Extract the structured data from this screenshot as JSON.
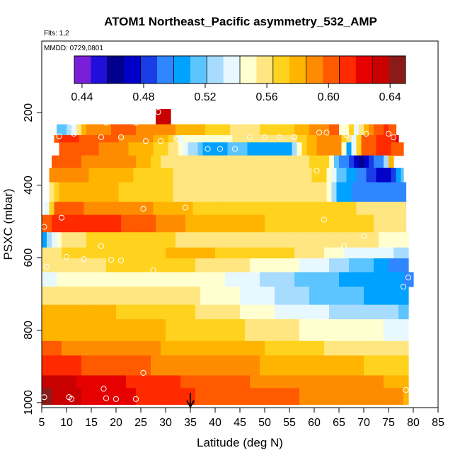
{
  "chart_data": {
    "type": "heatmap",
    "title": "ATOM1 Northeast_Pacific asymmetry_532_AMP",
    "flights_note": "Flts: 1,2",
    "dates_note": "MMDD: 0729,0801",
    "xlabel": "Latitude (deg N)",
    "ylabel": "PSXC (mbar)",
    "xlim": [
      5,
      85
    ],
    "ylim": [
      1000,
      0
    ],
    "x_ticks": [
      "5",
      "10",
      "15",
      "20",
      "25",
      "30",
      "35",
      "40",
      "45",
      "50",
      "55",
      "60",
      "65",
      "70",
      "75",
      "80",
      "85"
    ],
    "y_ticks": [
      "200",
      "400",
      "600",
      "800",
      "1000"
    ],
    "colorbar": {
      "range": [
        0.435,
        0.65
      ],
      "tick_labels": [
        "0.44",
        "0.48",
        "0.52",
        "0.56",
        "0.60",
        "0.64"
      ],
      "colors": [
        "#7a1fd8",
        "#1f0fd8",
        "#00008c",
        "#0000c8",
        "#1a3ce6",
        "#2f86ff",
        "#00a2ff",
        "#5cc4ff",
        "#a8dcff",
        "#e8f8ff",
        "#ffffd0",
        "#ffe680",
        "#ffd21e",
        "#ffb400",
        "#ff8c00",
        "#ff5a00",
        "#ff2a00",
        "#e60000",
        "#c80000",
        "#8b1a1a"
      ]
    },
    "marker_latitude": 35,
    "bands": [
      {
        "p_top": 190,
        "p_bot": 232,
        "x0": 28,
        "x1": 31,
        "v0": 0.63,
        "v1": 0.63
      },
      {
        "p_top": 232,
        "p_bot": 262,
        "x0": 8,
        "x1": 76.5,
        "kx": [
          8,
          11,
          14,
          20,
          30,
          45,
          55,
          60,
          65,
          66,
          67,
          68,
          70,
          72,
          75,
          76.5
        ],
        "kv": [
          0.51,
          0.53,
          0.585,
          0.6,
          0.59,
          0.56,
          0.57,
          0.59,
          0.6,
          0.5,
          0.6,
          0.53,
          0.57,
          0.6,
          0.61,
          0.6
        ]
      },
      {
        "p_top": 262,
        "p_bot": 282,
        "x0": 7.5,
        "x1": 77,
        "kx": [
          7.5,
          9,
          15,
          25,
          30,
          33,
          36,
          40,
          45,
          50,
          55,
          58,
          60,
          65,
          68,
          70,
          74,
          77
        ],
        "kv": [
          0.6,
          0.61,
          0.605,
          0.59,
          0.58,
          0.54,
          0.55,
          0.55,
          0.555,
          0.56,
          0.56,
          0.57,
          0.585,
          0.59,
          0.54,
          0.6,
          0.61,
          0.62
        ]
      },
      {
        "p_top": 282,
        "p_bot": 318,
        "x0": 8.5,
        "x1": 78,
        "kx": [
          8.5,
          15,
          25,
          30,
          33,
          35,
          38,
          41,
          44,
          47,
          50,
          55,
          58,
          60,
          65,
          67,
          70,
          74,
          78
        ],
        "kv": [
          0.6,
          0.6,
          0.58,
          0.57,
          0.55,
          0.53,
          0.51,
          0.5,
          0.52,
          0.51,
          0.5,
          0.51,
          0.57,
          0.585,
          0.59,
          0.5,
          0.6,
          0.61,
          0.6
        ]
      },
      {
        "p_top": 318,
        "p_bot": 352,
        "x0": 7,
        "x1": 76,
        "kx": [
          7,
          15,
          25,
          30,
          40,
          50,
          60,
          63,
          65,
          68,
          69,
          71,
          74,
          76
        ],
        "kv": [
          0.6,
          0.595,
          0.585,
          0.56,
          0.555,
          0.555,
          0.565,
          0.57,
          0.5,
          0.48,
          0.455,
          0.48,
          0.5,
          0.6
        ]
      },
      {
        "p_top": 352,
        "p_bot": 392,
        "x0": 6.5,
        "x1": 78,
        "kx": [
          6.5,
          10,
          20,
          30,
          40,
          50,
          62,
          65,
          70,
          75,
          78
        ],
        "kv": [
          0.59,
          0.59,
          0.58,
          0.565,
          0.56,
          0.56,
          0.565,
          0.52,
          0.49,
          0.47,
          0.52
        ]
      },
      {
        "p_top": 392,
        "p_bot": 446,
        "x0": 6.5,
        "x1": 78.5,
        "kx": [
          6.5,
          10,
          20,
          30,
          40,
          50,
          60,
          63,
          65,
          70,
          75,
          78.5
        ],
        "kv": [
          0.55,
          0.585,
          0.575,
          0.565,
          0.56,
          0.56,
          0.56,
          0.55,
          0.51,
          0.49,
          0.49,
          0.5
        ]
      },
      {
        "p_top": 446,
        "p_bot": 482,
        "x0": 5.5,
        "x1": 78.5,
        "kx": [
          5.5,
          8,
          15,
          25,
          30,
          40,
          50,
          60,
          68,
          72,
          78.5
        ],
        "kv": [
          0.52,
          0.6,
          0.595,
          0.59,
          0.58,
          0.57,
          0.57,
          0.565,
          0.565,
          0.56,
          0.56
        ]
      },
      {
        "p_top": 482,
        "p_bot": 530,
        "x0": 5,
        "x1": 78.5,
        "kx": [
          5,
          8,
          15,
          25,
          30,
          40,
          50,
          60,
          70,
          78.5
        ],
        "kv": [
          0.6,
          0.61,
          0.61,
          0.605,
          0.59,
          0.58,
          0.575,
          0.57,
          0.565,
          0.56
        ]
      },
      {
        "p_top": 530,
        "p_bot": 572,
        "x0": 5,
        "x1": 79,
        "kx": [
          5,
          7,
          10,
          15,
          20,
          25,
          30,
          40,
          50,
          60,
          70,
          79
        ],
        "kv": [
          0.495,
          0.535,
          0.56,
          0.565,
          0.565,
          0.565,
          0.565,
          0.56,
          0.56,
          0.56,
          0.555,
          0.55
        ]
      },
      {
        "p_top": 572,
        "p_bot": 602,
        "x0": 5,
        "x1": 79,
        "kx": [
          5,
          10,
          20,
          30,
          40,
          50,
          60,
          65,
          70,
          79
        ],
        "kv": [
          0.56,
          0.565,
          0.57,
          0.575,
          0.575,
          0.57,
          0.56,
          0.545,
          0.535,
          0.53
        ]
      },
      {
        "p_top": 602,
        "p_bot": 640,
        "x0": 5,
        "x1": 79,
        "kx": [
          5,
          10,
          20,
          30,
          40,
          50,
          60,
          65,
          70,
          75,
          79
        ],
        "kv": [
          0.56,
          0.56,
          0.565,
          0.57,
          0.56,
          0.55,
          0.54,
          0.525,
          0.515,
          0.5,
          0.49
        ]
      },
      {
        "p_top": 640,
        "p_bot": 680,
        "x0": 5,
        "x1": 80,
        "kx": [
          5,
          10,
          20,
          30,
          40,
          50,
          60,
          70,
          78,
          80
        ],
        "kv": [
          0.54,
          0.545,
          0.55,
          0.55,
          0.545,
          0.53,
          0.515,
          0.505,
          0.5,
          0.49
        ]
      },
      {
        "p_top": 680,
        "p_bot": 730,
        "x0": 5,
        "x1": 79,
        "kx": [
          5,
          10,
          20,
          30,
          40,
          50,
          60,
          70,
          79
        ],
        "kv": [
          0.555,
          0.555,
          0.56,
          0.56,
          0.55,
          0.535,
          0.52,
          0.51,
          0.505
        ]
      },
      {
        "p_top": 730,
        "p_bot": 770,
        "x0": 5,
        "x1": 79,
        "kx": [
          5,
          10,
          20,
          30,
          40,
          50,
          60,
          70,
          79
        ],
        "kv": [
          0.58,
          0.575,
          0.575,
          0.57,
          0.56,
          0.545,
          0.535,
          0.525,
          0.52
        ]
      },
      {
        "p_top": 770,
        "p_bot": 830,
        "x0": 5,
        "x1": 79,
        "kx": [
          5,
          10,
          20,
          30,
          40,
          50,
          60,
          70,
          79
        ],
        "kv": [
          0.585,
          0.58,
          0.58,
          0.575,
          0.57,
          0.56,
          0.55,
          0.545,
          0.54
        ]
      },
      {
        "p_top": 830,
        "p_bot": 870,
        "x0": 5,
        "x1": 79,
        "kx": [
          5,
          10,
          20,
          30,
          40,
          50,
          60,
          70,
          79
        ],
        "kv": [
          0.6,
          0.595,
          0.59,
          0.585,
          0.58,
          0.575,
          0.565,
          0.56,
          0.555
        ]
      },
      {
        "p_top": 870,
        "p_bot": 925,
        "x0": 5,
        "x1": 79,
        "kx": [
          5,
          10,
          20,
          30,
          40,
          50,
          60,
          70,
          79
        ],
        "kv": [
          0.615,
          0.61,
          0.6,
          0.595,
          0.59,
          0.585,
          0.58,
          0.575,
          0.57
        ]
      },
      {
        "p_top": 925,
        "p_bot": 960,
        "x0": 5,
        "x1": 79,
        "kx": [
          5,
          10,
          20,
          30,
          40,
          50,
          60,
          70,
          79
        ],
        "kv": [
          0.635,
          0.63,
          0.62,
          0.61,
          0.6,
          0.595,
          0.595,
          0.59,
          0.58
        ]
      },
      {
        "p_top": 960,
        "p_bot": 1005,
        "x0": 5,
        "x1": 79,
        "kx": [
          5,
          8,
          10,
          20,
          25,
          30,
          40,
          50,
          60,
          70,
          79
        ],
        "kv": [
          0.645,
          0.635,
          0.63,
          0.625,
          0.615,
          0.61,
          0.605,
          0.6,
          0.595,
          0.59,
          0.585
        ]
      }
    ],
    "sample_points": [
      [
        28.5,
        198
      ],
      [
        18,
        228
      ],
      [
        24,
        228
      ],
      [
        11,
        240
      ],
      [
        8.5,
        265
      ],
      [
        11.5,
        258
      ],
      [
        17,
        268
      ],
      [
        21,
        268
      ],
      [
        26,
        278
      ],
      [
        29,
        278
      ],
      [
        32.5,
        272
      ],
      [
        38.5,
        300
      ],
      [
        41,
        300
      ],
      [
        44,
        300
      ],
      [
        47,
        268
      ],
      [
        50,
        268
      ],
      [
        53,
        268
      ],
      [
        56,
        268
      ],
      [
        62.5,
        255
      ],
      [
        66,
        255
      ],
      [
        61,
        255
      ],
      [
        66.5,
        262
      ],
      [
        70.5,
        258
      ],
      [
        75,
        258
      ],
      [
        76,
        268
      ],
      [
        60.5,
        360
      ],
      [
        25.5,
        465
      ],
      [
        34,
        462
      ],
      [
        9,
        490
      ],
      [
        62,
        495
      ],
      [
        70,
        540
      ],
      [
        66,
        568
      ],
      [
        5.5,
        515
      ],
      [
        6,
        625
      ],
      [
        10,
        598
      ],
      [
        13.5,
        604
      ],
      [
        17,
        568
      ],
      [
        19,
        606
      ],
      [
        21,
        608
      ],
      [
        27.5,
        635
      ],
      [
        79,
        655
      ],
      [
        78,
        680
      ],
      [
        78.5,
        965
      ],
      [
        25.5,
        918
      ],
      [
        5.5,
        985
      ],
      [
        10.5,
        985
      ],
      [
        11,
        990
      ],
      [
        17.5,
        962
      ],
      [
        18,
        988
      ],
      [
        24,
        990
      ],
      [
        20,
        990
      ]
    ]
  }
}
